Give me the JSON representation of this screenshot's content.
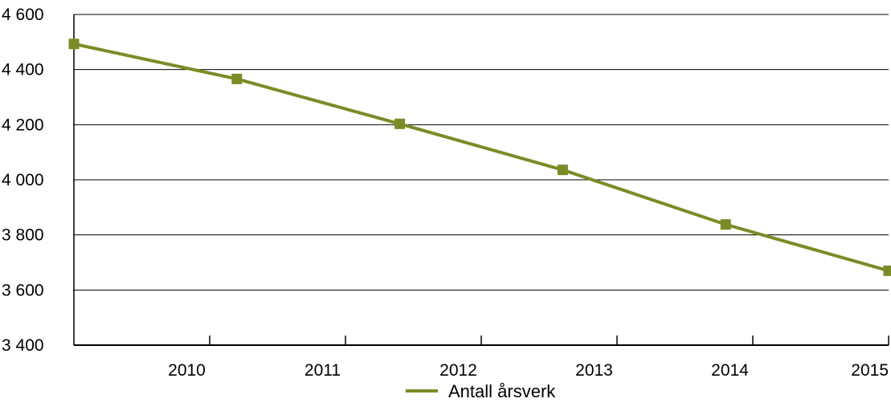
{
  "chart_data": {
    "type": "line",
    "x_tick_labels": [
      "2010",
      "2011",
      "2012",
      "2013",
      "2014",
      "2015"
    ],
    "y_tick_labels": [
      "3 400",
      "3 600",
      "3 800",
      "4 000",
      "4 200",
      "4 400",
      "4 600"
    ],
    "y_ticks": [
      3400,
      3600,
      3800,
      4000,
      4200,
      4400,
      4600
    ],
    "ylim": [
      3400,
      4600
    ],
    "grid": "horizontal",
    "legend_position": "bottom-center",
    "series": [
      {
        "name": "Antall årsverk",
        "color": "#7a8c27",
        "marker": "square",
        "x": [
          2009,
          2010.2,
          2011.4,
          2012.6,
          2013.8,
          2015
        ],
        "values": [
          4493,
          4366,
          4203,
          4036,
          3838,
          3670
        ]
      }
    ]
  }
}
